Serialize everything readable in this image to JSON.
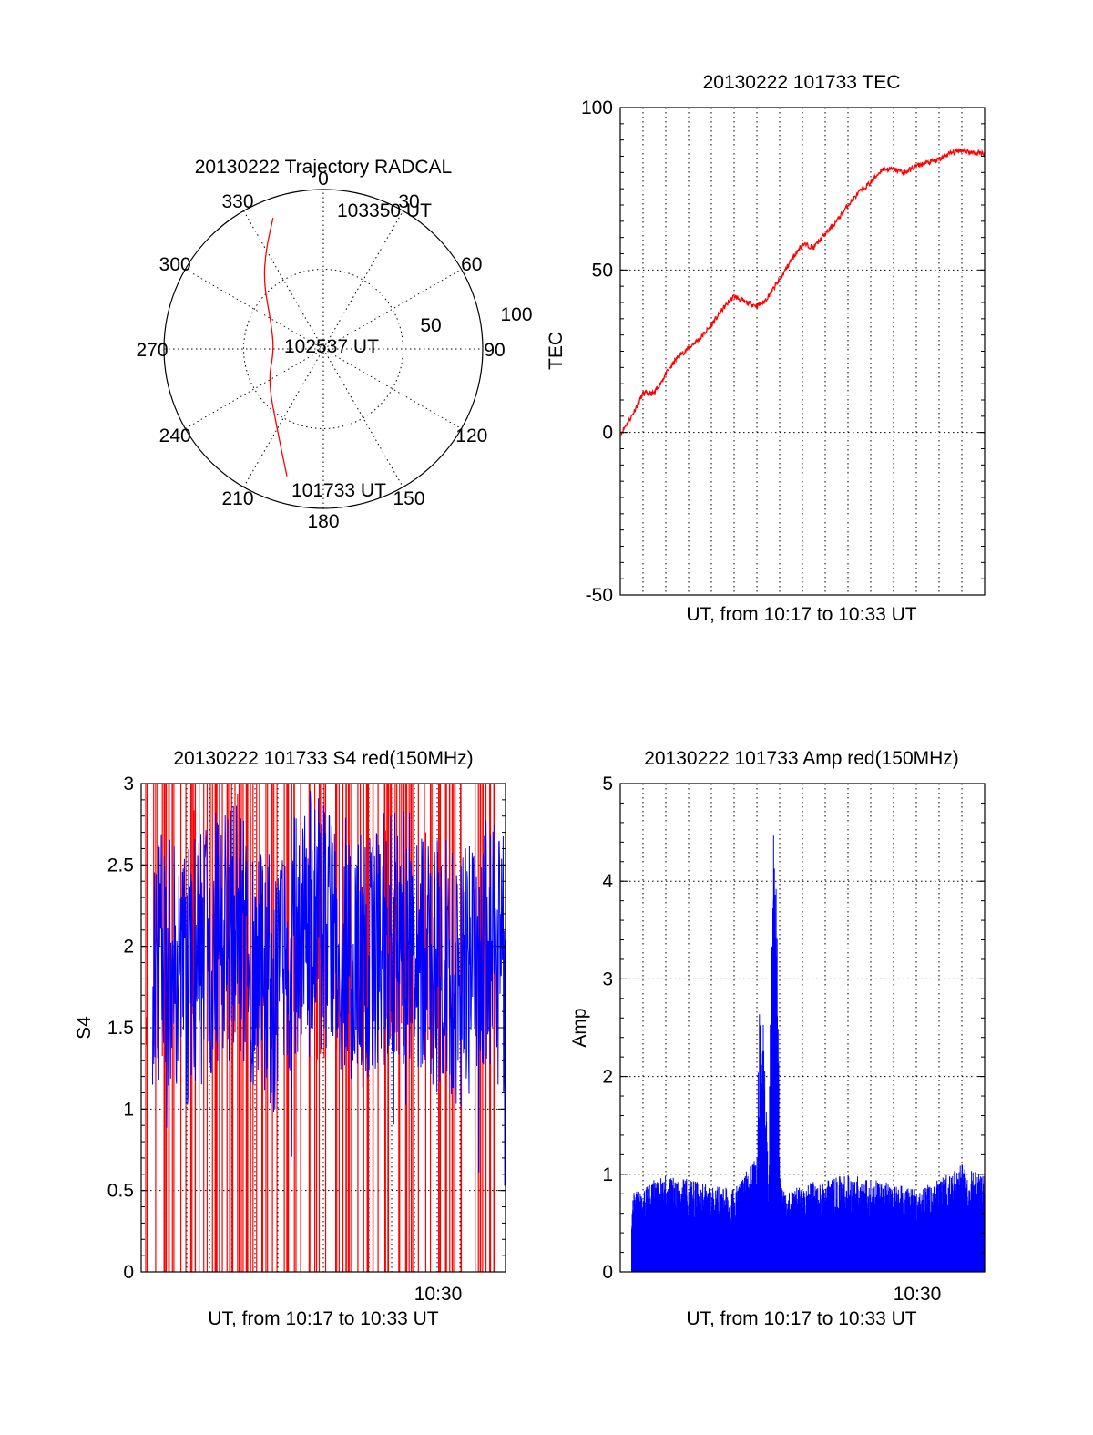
{
  "chart_data": [
    {
      "type": "polar",
      "title": "20130222 Trajectory RADCAL",
      "angle_labels": [
        "0",
        "30",
        "60",
        "90",
        "120",
        "150",
        "180",
        "210",
        "240",
        "270",
        "300",
        "330"
      ],
      "radius_labels": [
        "50",
        "100"
      ],
      "radius_range": [
        0,
        100
      ],
      "grid": true,
      "series": [
        {
          "color": "#ff0000",
          "points": [
            {
              "azimuth": 196,
              "elevation_offset": 83
            },
            {
              "azimuth": 210,
              "elevation_offset": 58
            },
            {
              "azimuth": 240,
              "elevation_offset": 40
            },
            {
              "azimuth": 268,
              "elevation_offset": 31
            },
            {
              "azimuth": 295,
              "elevation_offset": 36
            },
            {
              "azimuth": 318,
              "elevation_offset": 56
            },
            {
              "azimuth": 330,
              "elevation_offset": 72
            },
            {
              "azimuth": 339,
              "elevation_offset": 88
            }
          ]
        }
      ],
      "annotations": [
        "103350 UT",
        "102537 UT",
        "101733 UT"
      ]
    },
    {
      "type": "line",
      "title": "20130222 101733 TEC",
      "xlabel": "UT, from 10:17 to 10:33 UT",
      "ylabel": "TEC",
      "xlim": [
        0,
        16
      ],
      "ylim": [
        -50,
        100
      ],
      "yticks": [
        "-50",
        "0",
        "50",
        "100"
      ],
      "grid": true,
      "series": [
        {
          "color": "#ff0000",
          "x": [
            0.05,
            0.5,
            1.0,
            1.5,
            2.0,
            2.5,
            3.0,
            3.5,
            4.0,
            4.5,
            5.0,
            5.5,
            6.0,
            6.3,
            6.5,
            7.0,
            7.5,
            8.0,
            8.5,
            9.0,
            9.5,
            10.0,
            10.5,
            11.0,
            11.5,
            12.0,
            12.5,
            13.0,
            13.5,
            14.0,
            14.5,
            15.0,
            15.5,
            16.0
          ],
          "y": [
            0,
            5,
            12,
            12,
            18,
            23,
            26,
            29,
            33,
            38,
            42,
            40,
            39,
            40,
            42,
            47,
            53,
            58,
            57,
            61,
            65,
            70,
            74,
            77,
            81,
            81,
            80,
            82,
            83,
            84,
            86,
            87,
            86,
            86
          ]
        }
      ]
    },
    {
      "type": "bar",
      "title": "20130222 101733 S4 red(150MHz)",
      "xlabel": "UT, from 10:17 to 10:33 UT",
      "ylabel": "S4",
      "xlim": [
        0,
        16
      ],
      "ylim": [
        0,
        3
      ],
      "yticks": [
        "0",
        "0.5",
        "1",
        "1.5",
        "2",
        "2.5",
        "3"
      ],
      "xticks": [
        "10:30"
      ],
      "grid": true,
      "series": [
        {
          "color": "#ff0000",
          "description": "dense spikes reaching full scale"
        },
        {
          "color": "#0000ff",
          "x": [
            0,
            1,
            2,
            3,
            4,
            5,
            6,
            7,
            8,
            9,
            10,
            11,
            12,
            13,
            14,
            15,
            16
          ],
          "y": [
            2.0,
            1.9,
            1.8,
            2.0,
            2.1,
            1.9,
            1.7,
            2.2,
            2.1,
            2.0,
            1.9,
            2.1,
            2.0,
            1.9,
            1.8,
            2.0,
            1.9
          ]
        }
      ]
    },
    {
      "type": "bar",
      "title": "20130222 101733 Amp red(150MHz)",
      "xlabel": "UT, from 10:17 to 10:33 UT",
      "ylabel": "Amp",
      "xlim": [
        0,
        16
      ],
      "ylim": [
        0,
        5
      ],
      "yticks": [
        "0",
        "1",
        "2",
        "3",
        "4",
        "5"
      ],
      "xticks": [
        "10:30"
      ],
      "grid": true,
      "series": [
        {
          "color": "#0000ff",
          "x": [
            0,
            1,
            2,
            3,
            4,
            5,
            6,
            6.1,
            6.3,
            6.5,
            6.7,
            6.9,
            7.0,
            7.1,
            7.3,
            8,
            9,
            10,
            11,
            12,
            13,
            14,
            15,
            16
          ],
          "y": [
            0.7,
            0.9,
            1.0,
            0.95,
            0.9,
            0.85,
            1.2,
            2.7,
            2.6,
            1.0,
            4.6,
            4.0,
            1.0,
            0.9,
            0.8,
            0.9,
            0.95,
            1.0,
            0.95,
            0.9,
            0.85,
            0.95,
            1.1,
            1.0
          ]
        }
      ]
    }
  ]
}
